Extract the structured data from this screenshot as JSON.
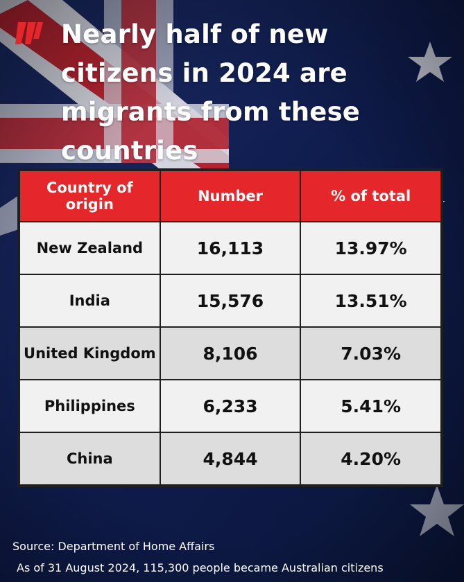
{
  "headline": "Nearly half of new citizens in 2024 are migrants from these countries",
  "colors": {
    "header_red": "#e5262a",
    "flag_blue": "#0d1b46"
  },
  "logo_icon": "sbs-logo-icon",
  "table": {
    "headers": [
      "Country of origin",
      "Number",
      "% of total"
    ],
    "rows": [
      {
        "country": "New Zealand",
        "number": "16,113",
        "percent": "13.97%"
      },
      {
        "country": "India",
        "number": "15,576",
        "percent": "13.51%"
      },
      {
        "country": "United Kingdom",
        "number": "8,106",
        "percent": "7.03%"
      },
      {
        "country": "Philippines",
        "number": "6,233",
        "percent": "5.41%"
      },
      {
        "country": "China",
        "number": "4,844",
        "percent": "4.20%"
      }
    ]
  },
  "footer": {
    "source": "Source: Department of Home Affairs",
    "as_of": "As of 31 August 2024, 115,300 people became Australian citizens"
  }
}
